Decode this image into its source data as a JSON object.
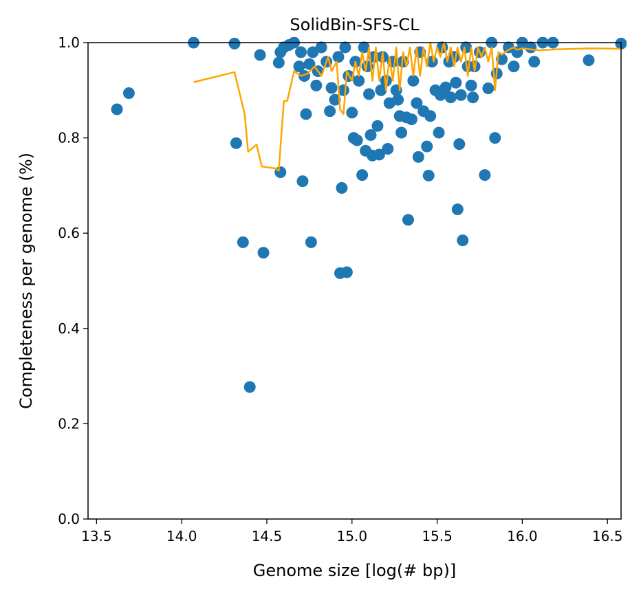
{
  "chart_data": {
    "type": "scatter",
    "title": "SolidBin-SFS-CL",
    "xlabel": "Genome size [log(# bp)]",
    "ylabel": "Completeness per genome (%)",
    "xlim": [
      13.45,
      16.58
    ],
    "ylim": [
      0.0,
      1.0
    ],
    "x_ticks": [
      "13.5",
      "14.0",
      "14.5",
      "15.0",
      "15.5",
      "16.0",
      "16.5"
    ],
    "y_ticks": [
      "0.0",
      "0.2",
      "0.4",
      "0.6",
      "0.8",
      "1.0"
    ],
    "grid": false,
    "legend": "none",
    "series": [
      {
        "kind": "scatter",
        "color": "#1f77b4",
        "points": [
          [
            13.62,
            0.86
          ],
          [
            13.69,
            0.894
          ],
          [
            14.07,
            1.0
          ],
          [
            14.31,
            0.998
          ],
          [
            14.32,
            0.789
          ],
          [
            14.36,
            0.581
          ],
          [
            14.4,
            0.277
          ],
          [
            14.46,
            0.974
          ],
          [
            14.48,
            0.559
          ],
          [
            14.57,
            0.958
          ],
          [
            14.58,
            0.728
          ],
          [
            14.58,
            0.98
          ],
          [
            14.6,
            0.99
          ],
          [
            14.63,
            0.995
          ],
          [
            14.66,
            1.0
          ],
          [
            14.69,
            0.95
          ],
          [
            14.7,
            0.98
          ],
          [
            14.71,
            0.709
          ],
          [
            14.72,
            0.93
          ],
          [
            14.73,
            0.85
          ],
          [
            14.75,
            0.955
          ],
          [
            14.76,
            0.581
          ],
          [
            14.77,
            0.98
          ],
          [
            14.79,
            0.91
          ],
          [
            14.8,
            0.94
          ],
          [
            14.82,
            0.99
          ],
          [
            14.85,
            0.96
          ],
          [
            14.87,
            0.856
          ],
          [
            14.88,
            0.905
          ],
          [
            14.9,
            0.88
          ],
          [
            14.92,
            0.97
          ],
          [
            14.93,
            0.516
          ],
          [
            14.94,
            0.695
          ],
          [
            14.95,
            0.9
          ],
          [
            14.96,
            0.99
          ],
          [
            14.97,
            0.518
          ],
          [
            14.98,
            0.93
          ],
          [
            15.0,
            0.853
          ],
          [
            15.01,
            0.8
          ],
          [
            15.02,
            0.96
          ],
          [
            15.03,
            0.795
          ],
          [
            15.04,
            0.92
          ],
          [
            15.06,
            0.722
          ],
          [
            15.07,
            0.99
          ],
          [
            15.08,
            0.773
          ],
          [
            15.09,
            0.95
          ],
          [
            15.1,
            0.892
          ],
          [
            15.11,
            0.806
          ],
          [
            15.12,
            0.763
          ],
          [
            15.13,
            0.97
          ],
          [
            15.15,
            0.825
          ],
          [
            15.16,
            0.765
          ],
          [
            15.17,
            0.9
          ],
          [
            15.18,
            0.97
          ],
          [
            15.2,
            0.92
          ],
          [
            15.21,
            0.777
          ],
          [
            15.22,
            0.873
          ],
          [
            15.24,
            0.96
          ],
          [
            15.26,
            0.9
          ],
          [
            15.27,
            0.88
          ],
          [
            15.28,
            0.846
          ],
          [
            15.29,
            0.811
          ],
          [
            15.3,
            0.96
          ],
          [
            15.32,
            0.843
          ],
          [
            15.33,
            0.628
          ],
          [
            15.35,
            0.839
          ],
          [
            15.36,
            0.92
          ],
          [
            15.38,
            0.873
          ],
          [
            15.39,
            0.76
          ],
          [
            15.4,
            0.98
          ],
          [
            15.42,
            0.856
          ],
          [
            15.44,
            0.782
          ],
          [
            15.45,
            0.721
          ],
          [
            15.46,
            0.846
          ],
          [
            15.47,
            0.96
          ],
          [
            15.49,
            0.9
          ],
          [
            15.51,
            0.811
          ],
          [
            15.52,
            0.89
          ],
          [
            15.53,
            0.99
          ],
          [
            15.55,
            0.906
          ],
          [
            15.57,
            0.96
          ],
          [
            15.58,
            0.885
          ],
          [
            15.6,
            0.97
          ],
          [
            15.61,
            0.916
          ],
          [
            15.62,
            0.65
          ],
          [
            15.63,
            0.787
          ],
          [
            15.64,
            0.89
          ],
          [
            15.65,
            0.585
          ],
          [
            15.67,
            0.99
          ],
          [
            15.68,
            0.95
          ],
          [
            15.7,
            0.91
          ],
          [
            15.71,
            0.885
          ],
          [
            15.72,
            0.95
          ],
          [
            15.75,
            0.98
          ],
          [
            15.78,
            0.722
          ],
          [
            15.8,
            0.904
          ],
          [
            15.82,
            1.0
          ],
          [
            15.84,
            0.8
          ],
          [
            15.85,
            0.935
          ],
          [
            15.88,
            0.965
          ],
          [
            15.92,
            0.99
          ],
          [
            15.95,
            0.95
          ],
          [
            15.97,
            0.98
          ],
          [
            16.0,
            1.0
          ],
          [
            16.05,
            0.99
          ],
          [
            16.07,
            0.96
          ],
          [
            16.12,
            1.0
          ],
          [
            16.18,
            1.0
          ],
          [
            16.39,
            0.963
          ],
          [
            16.58,
            0.998
          ]
        ]
      },
      {
        "kind": "line",
        "color": "#ffa500",
        "points": [
          [
            14.07,
            0.917
          ],
          [
            14.31,
            0.938
          ],
          [
            14.37,
            0.85
          ],
          [
            14.39,
            0.771
          ],
          [
            14.44,
            0.786
          ],
          [
            14.47,
            0.74
          ],
          [
            14.55,
            0.736
          ],
          [
            14.57,
            0.731
          ],
          [
            14.58,
            0.78
          ],
          [
            14.6,
            0.877
          ],
          [
            14.62,
            0.878
          ],
          [
            14.66,
            0.94
          ],
          [
            14.7,
            0.93
          ],
          [
            14.74,
            0.935
          ],
          [
            14.78,
            0.95
          ],
          [
            14.82,
            0.93
          ],
          [
            14.86,
            0.97
          ],
          [
            14.88,
            0.94
          ],
          [
            14.91,
            0.96
          ],
          [
            14.93,
            0.86
          ],
          [
            14.95,
            0.85
          ],
          [
            14.97,
            0.94
          ],
          [
            15.0,
            0.92
          ],
          [
            15.02,
            0.96
          ],
          [
            15.04,
            0.93
          ],
          [
            15.06,
            0.98
          ],
          [
            15.08,
            0.94
          ],
          [
            15.1,
            0.99
          ],
          [
            15.12,
            0.92
          ],
          [
            15.14,
            0.99
          ],
          [
            15.16,
            0.92
          ],
          [
            15.18,
            0.98
          ],
          [
            15.2,
            0.9
          ],
          [
            15.22,
            0.97
          ],
          [
            15.24,
            0.92
          ],
          [
            15.26,
            0.99
          ],
          [
            15.28,
            0.9
          ],
          [
            15.3,
            0.98
          ],
          [
            15.32,
            0.95
          ],
          [
            15.34,
            0.99
          ],
          [
            15.36,
            0.93
          ],
          [
            15.38,
            0.99
          ],
          [
            15.4,
            0.93
          ],
          [
            15.42,
            0.99
          ],
          [
            15.44,
            0.95
          ],
          [
            15.46,
            1.0
          ],
          [
            15.48,
            0.96
          ],
          [
            15.5,
            0.99
          ],
          [
            15.52,
            0.97
          ],
          [
            15.54,
            1.0
          ],
          [
            15.56,
            0.96
          ],
          [
            15.58,
            0.99
          ],
          [
            15.6,
            0.95
          ],
          [
            15.62,
            0.99
          ],
          [
            15.64,
            0.96
          ],
          [
            15.66,
            0.99
          ],
          [
            15.68,
            0.93
          ],
          [
            15.7,
            0.99
          ],
          [
            15.72,
            0.94
          ],
          [
            15.74,
            0.99
          ],
          [
            15.76,
            0.97
          ],
          [
            15.78,
            0.99
          ],
          [
            15.8,
            0.96
          ],
          [
            15.82,
            0.99
          ],
          [
            15.84,
            0.9
          ],
          [
            15.86,
            0.98
          ],
          [
            15.88,
            0.975
          ],
          [
            15.92,
            0.985
          ],
          [
            15.95,
            0.99
          ],
          [
            15.97,
            0.985
          ],
          [
            16.0,
            0.988
          ],
          [
            16.1,
            0.984
          ],
          [
            16.2,
            0.986
          ],
          [
            16.4,
            0.988
          ],
          [
            16.58,
            0.987
          ]
        ]
      }
    ]
  }
}
